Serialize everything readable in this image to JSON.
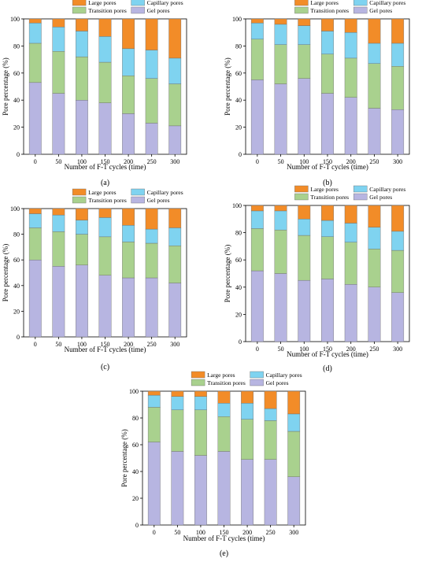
{
  "colors": {
    "large": "#F28C28",
    "capillary": "#7FD3F0",
    "transition": "#A9D18E",
    "gel": "#B7B5E1",
    "stroke": "#000000"
  },
  "chart_data": [
    {
      "type": "bar",
      "stacked": true,
      "panel_label": "(a)",
      "xlabel": "Number of F-T cycles (time)",
      "ylabel": "Pore percentage (%)",
      "ylim": [
        0,
        100
      ],
      "yticks": [
        "0",
        "20",
        "40",
        "60",
        "80",
        "100"
      ],
      "categories": [
        "0",
        "50",
        "100",
        "150",
        "200",
        "250",
        "300"
      ],
      "series": [
        {
          "name": "Gel pores",
          "key": "gel",
          "values": [
            53,
            45,
            40,
            38,
            30,
            23,
            21
          ]
        },
        {
          "name": "Transition pores",
          "key": "transition",
          "values": [
            29,
            31,
            32,
            30,
            28,
            33,
            31
          ]
        },
        {
          "name": "Capillary pores",
          "key": "capillary",
          "values": [
            15,
            18,
            19,
            19,
            20,
            21,
            19
          ]
        },
        {
          "name": "Large pores",
          "key": "large",
          "values": [
            3,
            6,
            9,
            13,
            22,
            23,
            29
          ]
        }
      ],
      "legend": "top"
    },
    {
      "type": "bar",
      "stacked": true,
      "panel_label": "(b)",
      "xlabel": "Number of F-T cycles (time)",
      "ylabel": "Pore percentage (%)",
      "ylim": [
        0,
        100
      ],
      "yticks": [
        "0",
        "20",
        "40",
        "60",
        "80",
        "100"
      ],
      "categories": [
        "0",
        "50",
        "100",
        "150",
        "200",
        "250",
        "300"
      ],
      "series": [
        {
          "name": "Gel pores",
          "key": "gel",
          "values": [
            55,
            52,
            56,
            45,
            42,
            34,
            33
          ]
        },
        {
          "name": "Transition pores",
          "key": "transition",
          "values": [
            30,
            29,
            25,
            29,
            29,
            33,
            32
          ]
        },
        {
          "name": "Capillary pores",
          "key": "capillary",
          "values": [
            12,
            15,
            14,
            17,
            19,
            15,
            17
          ]
        },
        {
          "name": "Large pores",
          "key": "large",
          "values": [
            3,
            4,
            5,
            9,
            10,
            18,
            18
          ]
        }
      ],
      "legend": "top"
    },
    {
      "type": "bar",
      "stacked": true,
      "panel_label": "(c)",
      "xlabel": "Number of F-T cycles (time)",
      "ylabel": "Pore percentage (%)",
      "ylim": [
        0,
        100
      ],
      "yticks": [
        "0",
        "20",
        "40",
        "60",
        "80",
        "100"
      ],
      "categories": [
        "0",
        "50",
        "100",
        "150",
        "200",
        "250",
        "300"
      ],
      "series": [
        {
          "name": "Gel pores",
          "key": "gel",
          "values": [
            60,
            55,
            56,
            48,
            46,
            46,
            42
          ]
        },
        {
          "name": "Transition pores",
          "key": "transition",
          "values": [
            25,
            27,
            24,
            30,
            28,
            27,
            29
          ]
        },
        {
          "name": "Capillary pores",
          "key": "capillary",
          "values": [
            11,
            13,
            11,
            15,
            13,
            11,
            14
          ]
        },
        {
          "name": "Large pores",
          "key": "large",
          "values": [
            4,
            5,
            9,
            7,
            13,
            16,
            15
          ]
        }
      ],
      "legend": "top"
    },
    {
      "type": "bar",
      "stacked": true,
      "panel_label": "(d)",
      "xlabel": "Number of F-T cycles (time)",
      "ylabel": "Pore percentage (%)",
      "ylim": [
        0,
        100
      ],
      "yticks": [
        "0",
        "20",
        "40",
        "60",
        "80",
        "100"
      ],
      "categories": [
        "0",
        "50",
        "100",
        "150",
        "200",
        "250",
        "300"
      ],
      "series": [
        {
          "name": "Gel pores",
          "key": "gel",
          "values": [
            52,
            50,
            45,
            46,
            42,
            40,
            36
          ]
        },
        {
          "name": "Transition pores",
          "key": "transition",
          "values": [
            31,
            32,
            33,
            31,
            31,
            28,
            31
          ]
        },
        {
          "name": "Capillary pores",
          "key": "capillary",
          "values": [
            13,
            14,
            12,
            12,
            14,
            16,
            14
          ]
        },
        {
          "name": "Large pores",
          "key": "large",
          "values": [
            4,
            4,
            10,
            11,
            13,
            16,
            19
          ]
        }
      ],
      "legend": "top"
    },
    {
      "type": "bar",
      "stacked": true,
      "panel_label": "(e)",
      "xlabel": "Number of F-T cycles (time)",
      "ylabel": "Pore percentage (%)",
      "ylim": [
        0,
        100
      ],
      "yticks": [
        "0",
        "20",
        "40",
        "60",
        "80",
        "100"
      ],
      "categories": [
        "0",
        "50",
        "100",
        "150",
        "200",
        "250",
        "300"
      ],
      "series": [
        {
          "name": "Gel pores",
          "key": "gel",
          "values": [
            62,
            55,
            52,
            55,
            49,
            49,
            36
          ]
        },
        {
          "name": "Transition pores",
          "key": "transition",
          "values": [
            26,
            31,
            34,
            26,
            30,
            29,
            34
          ]
        },
        {
          "name": "Capillary pores",
          "key": "capillary",
          "values": [
            9,
            10,
            10,
            10,
            12,
            9,
            13
          ]
        },
        {
          "name": "Large pores",
          "key": "large",
          "values": [
            3,
            4,
            4,
            9,
            9,
            13,
            17
          ]
        }
      ],
      "legend": "top"
    }
  ]
}
